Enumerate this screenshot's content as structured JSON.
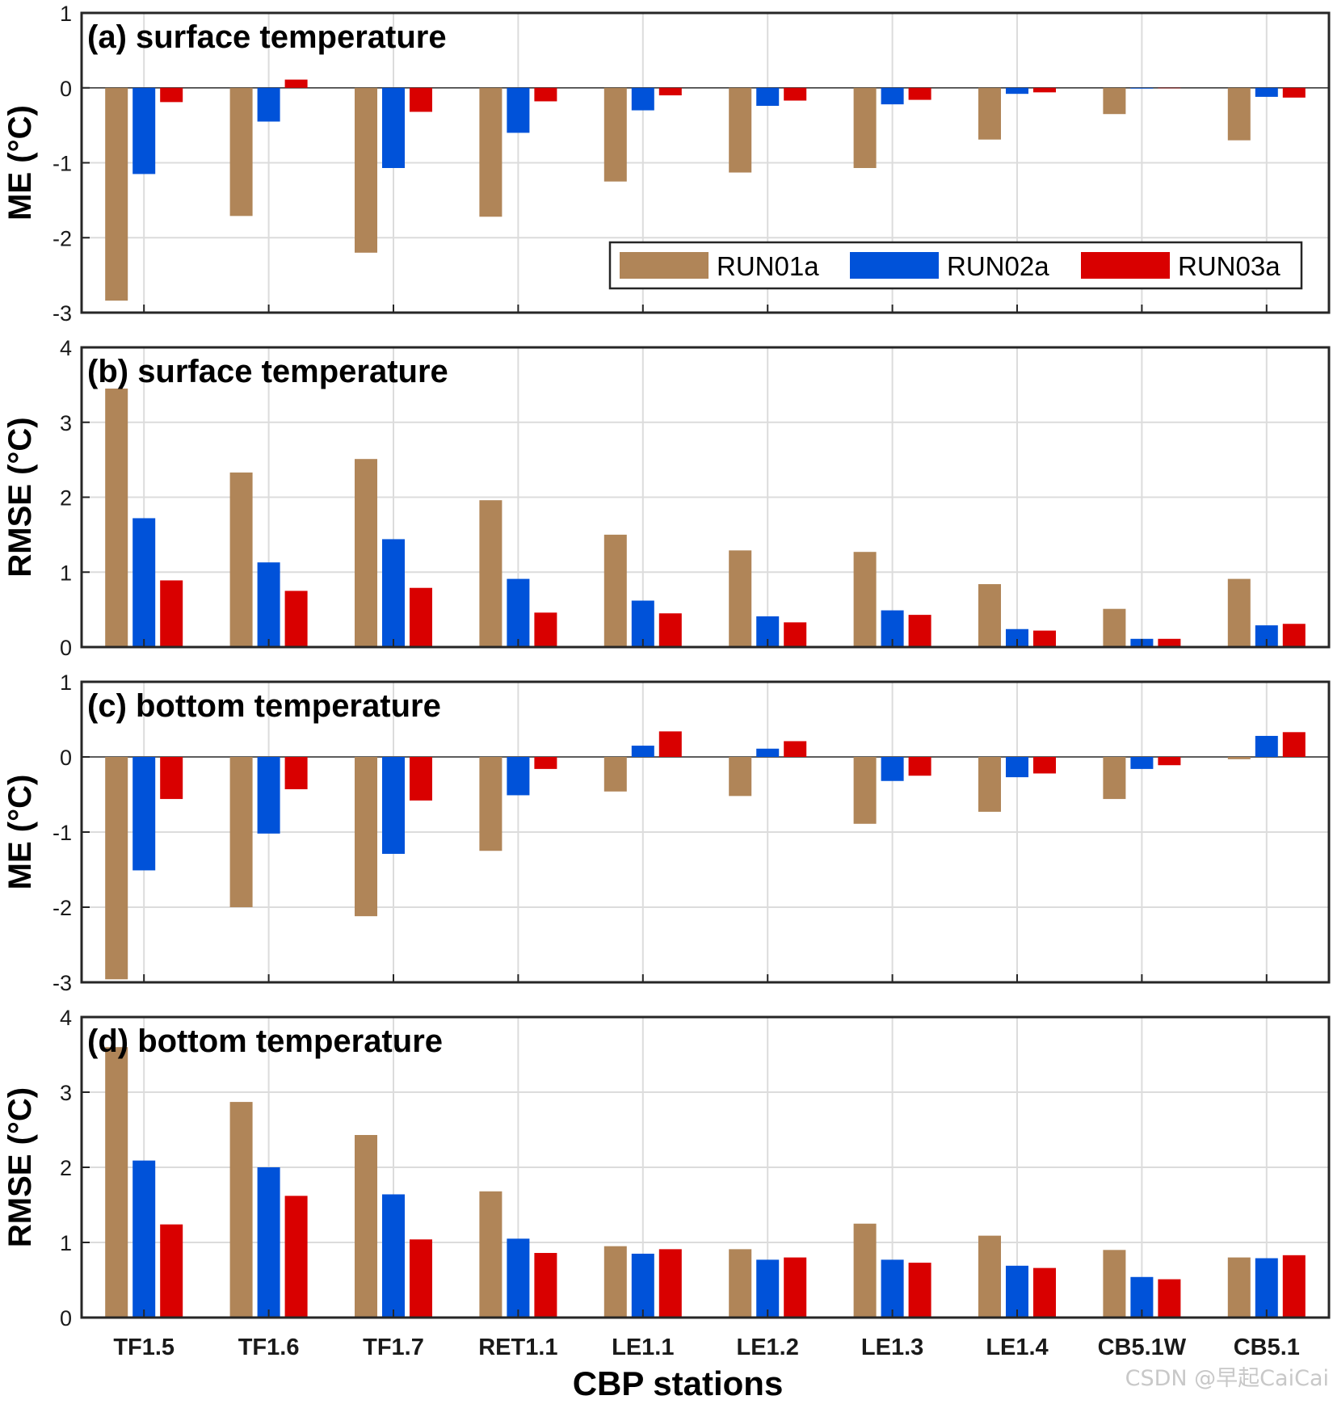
{
  "chart_data": [
    {
      "type": "bar",
      "title": "(a) surface temperature",
      "ylabel": "ME (°C)",
      "ylim": [
        -3,
        1
      ],
      "yticks": [
        -3,
        -2,
        -1,
        0,
        1
      ],
      "categories": [
        "TF1.5",
        "TF1.6",
        "TF1.7",
        "RET1.1",
        "LE1.1",
        "LE1.2",
        "LE1.3",
        "LE1.4",
        "CB5.1W",
        "CB5.1"
      ],
      "series": [
        {
          "name": "RUN01a",
          "values": [
            -2.84,
            -1.71,
            -2.2,
            -1.72,
            -1.25,
            -1.13,
            -1.07,
            -0.69,
            -0.35,
            -0.7
          ]
        },
        {
          "name": "RUN02a",
          "values": [
            -1.15,
            -0.45,
            -1.07,
            -0.6,
            -0.3,
            -0.24,
            -0.22,
            -0.08,
            -0.01,
            -0.12
          ]
        },
        {
          "name": "RUN03a",
          "values": [
            -0.19,
            0.11,
            -0.32,
            -0.18,
            -0.1,
            -0.17,
            -0.16,
            -0.06,
            0.0,
            -0.13
          ]
        }
      ],
      "legend": "bottom-right",
      "grid": true
    },
    {
      "type": "bar",
      "title": "(b) surface temperature",
      "ylabel": "RMSE (°C)",
      "ylim": [
        0,
        4
      ],
      "yticks": [
        0,
        1,
        2,
        3,
        4
      ],
      "categories": [
        "TF1.5",
        "TF1.6",
        "TF1.7",
        "RET1.1",
        "LE1.1",
        "LE1.2",
        "LE1.3",
        "LE1.4",
        "CB5.1W",
        "CB5.1"
      ],
      "series": [
        {
          "name": "RUN01a",
          "values": [
            3.45,
            2.33,
            2.51,
            1.96,
            1.5,
            1.29,
            1.27,
            0.84,
            0.51,
            0.91
          ]
        },
        {
          "name": "RUN02a",
          "values": [
            1.72,
            1.13,
            1.44,
            0.91,
            0.62,
            0.41,
            0.49,
            0.24,
            0.11,
            0.29
          ]
        },
        {
          "name": "RUN03a",
          "values": [
            0.89,
            0.75,
            0.79,
            0.46,
            0.45,
            0.33,
            0.43,
            0.22,
            0.11,
            0.31
          ]
        }
      ],
      "grid": true
    },
    {
      "type": "bar",
      "title": "(c) bottom temperature",
      "ylabel": "ME (°C)",
      "ylim": [
        -3,
        1
      ],
      "yticks": [
        -3,
        -2,
        -1,
        0,
        1
      ],
      "categories": [
        "TF1.5",
        "TF1.6",
        "TF1.7",
        "RET1.1",
        "LE1.1",
        "LE1.2",
        "LE1.3",
        "LE1.4",
        "CB5.1W",
        "CB5.1"
      ],
      "series": [
        {
          "name": "RUN01a",
          "values": [
            -2.96,
            -2.0,
            -2.12,
            -1.25,
            -0.46,
            -0.52,
            -0.89,
            -0.73,
            -0.56,
            -0.03
          ]
        },
        {
          "name": "RUN02a",
          "values": [
            -1.51,
            -1.02,
            -1.29,
            -0.51,
            0.15,
            0.11,
            -0.32,
            -0.27,
            -0.16,
            0.28
          ]
        },
        {
          "name": "RUN03a",
          "values": [
            -0.56,
            -0.43,
            -0.58,
            -0.16,
            0.34,
            0.21,
            -0.25,
            -0.22,
            -0.11,
            0.33
          ]
        }
      ],
      "grid": true
    },
    {
      "type": "bar",
      "title": "(d) bottom temperature",
      "ylabel": "RMSE (°C)",
      "xlabel": "CBP stations",
      "ylim": [
        0,
        4
      ],
      "yticks": [
        0,
        1,
        2,
        3,
        4
      ],
      "categories": [
        "TF1.5",
        "TF1.6",
        "TF1.7",
        "RET1.1",
        "LE1.1",
        "LE1.2",
        "LE1.3",
        "LE1.4",
        "CB5.1W",
        "CB5.1"
      ],
      "series": [
        {
          "name": "RUN01a",
          "values": [
            3.6,
            2.87,
            2.43,
            1.68,
            0.95,
            0.91,
            1.25,
            1.09,
            0.9,
            0.8
          ]
        },
        {
          "name": "RUN02a",
          "values": [
            2.09,
            2.0,
            1.64,
            1.05,
            0.85,
            0.77,
            0.77,
            0.69,
            0.54,
            0.79
          ]
        },
        {
          "name": "RUN03a",
          "values": [
            1.24,
            1.62,
            1.04,
            0.86,
            0.91,
            0.8,
            0.73,
            0.66,
            0.51,
            0.83
          ]
        }
      ],
      "grid": true
    }
  ],
  "colors": {
    "RUN01a": "#b08558",
    "RUN02a": "#0052d9",
    "RUN03a": "#d90000",
    "grid": "#dcdcdc"
  },
  "watermark": "CSDN @早起CaiCai"
}
